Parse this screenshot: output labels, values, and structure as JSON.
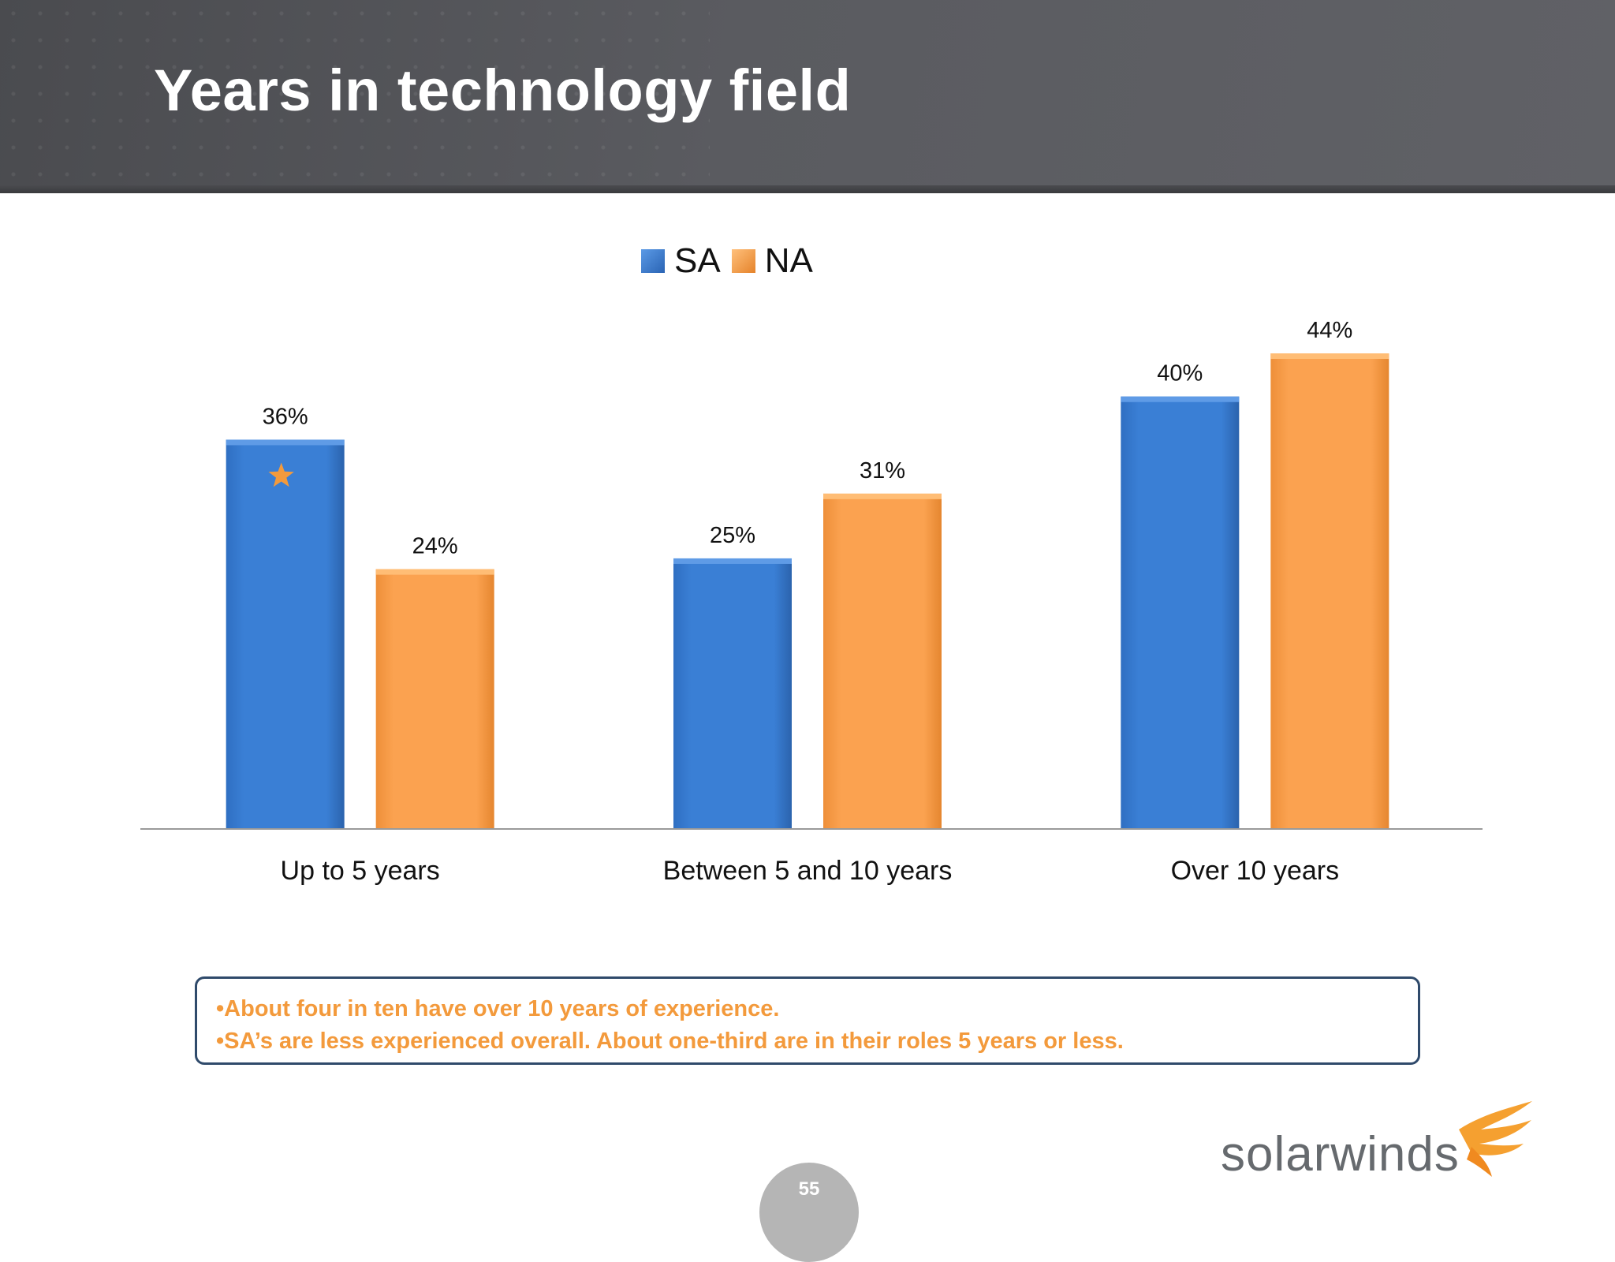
{
  "header": {
    "title": "Years in technology field"
  },
  "chart_data": {
    "type": "bar",
    "categories": [
      "Up to 5 years",
      "Between 5 and 10 years",
      "Over 10 years"
    ],
    "series": [
      {
        "name": "SA",
        "values": [
          36,
          25,
          40
        ],
        "labels": [
          "36%",
          "25%",
          "40%"
        ],
        "color": "#3a7fd5"
      },
      {
        "name": "NA",
        "values": [
          24,
          31,
          44
        ],
        "labels": [
          "24%",
          "31%",
          "44%"
        ],
        "color": "#f99f49"
      }
    ],
    "ylim": [
      0,
      44
    ],
    "legend_position": "top-center",
    "grid": false,
    "annotation": {
      "type": "star",
      "category": "Up to 5 years",
      "series": "SA",
      "color": "#f39a3c"
    }
  },
  "notes": [
    "About four in ten have over 10 years of experience.",
    "SA’s are less experienced overall.  About one-third are in their roles 5 years or less."
  ],
  "logo": {
    "text": "solarwinds"
  },
  "page": {
    "number": "55"
  },
  "colors": {
    "sa": "#3a7fd5",
    "na": "#f99f49",
    "note_text": "#f39a3c",
    "note_border": "#2f4a6b"
  }
}
